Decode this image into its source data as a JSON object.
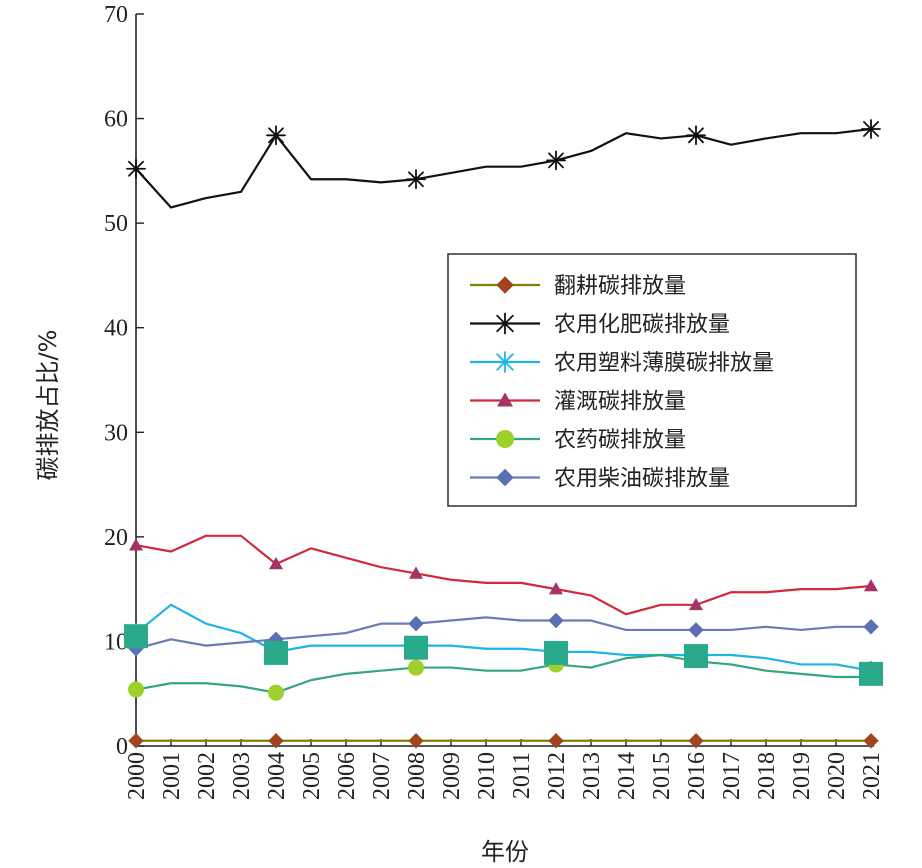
{
  "chart_data": {
    "type": "line",
    "title": "",
    "xlabel": "年份",
    "ylabel": "碳排放占比/%",
    "ylim": [
      0,
      70
    ],
    "yticks": [
      0,
      10,
      20,
      30,
      40,
      50,
      60,
      70
    ],
    "x": [
      "2000",
      "2001",
      "2002",
      "2003",
      "2004",
      "2005",
      "2006",
      "2007",
      "2008",
      "2009",
      "2010",
      "2011",
      "2012",
      "2013",
      "2014",
      "2015",
      "2016",
      "2017",
      "2018",
      "2019",
      "2020",
      "2021"
    ],
    "grid": false,
    "legend_position": "center-right",
    "series": [
      {
        "name": "翻耕碳排放量",
        "color": "#808000",
        "marker": "diamond",
        "marker_color": "#a0451e",
        "marker_at": [
          "2000",
          "2004",
          "2008",
          "2012",
          "2016",
          "2021"
        ],
        "values": [
          0.5,
          0.5,
          0.5,
          0.5,
          0.5,
          0.5,
          0.5,
          0.5,
          0.5,
          0.5,
          0.5,
          0.5,
          0.5,
          0.5,
          0.5,
          0.5,
          0.5,
          0.5,
          0.5,
          0.5,
          0.5,
          0.5
        ]
      },
      {
        "name": "农用化肥碳排放量",
        "color": "#111111",
        "marker": "asterisk",
        "marker_color": "#111111",
        "marker_at": [
          "2000",
          "2004",
          "2008",
          "2012",
          "2016",
          "2021"
        ],
        "values": [
          55.2,
          51.5,
          52.4,
          53.0,
          58.4,
          54.2,
          54.2,
          53.9,
          54.2,
          54.8,
          55.4,
          55.4,
          56.0,
          56.9,
          58.6,
          58.1,
          58.4,
          57.5,
          58.1,
          58.6,
          58.6,
          59.0
        ]
      },
      {
        "name": "农用塑料薄膜碳排放量",
        "color": "#1fb4e6",
        "marker": "asterisk",
        "marker_color": "#1fb4e6",
        "marker_at": [
          "2000",
          "2004",
          "2008",
          "2012",
          "2016",
          "2021"
        ],
        "values": [
          10.8,
          13.5,
          11.7,
          10.8,
          9.0,
          9.6,
          9.6,
          9.6,
          9.6,
          9.6,
          9.3,
          9.3,
          9.0,
          9.0,
          8.7,
          8.7,
          8.7,
          8.7,
          8.4,
          7.8,
          7.8,
          7.2
        ]
      },
      {
        "name": "灌溉碳排放量",
        "color": "#d12a3a",
        "marker": "triangle",
        "marker_color": "#a23566",
        "marker_at": [
          "2000",
          "2004",
          "2008",
          "2012",
          "2016",
          "2021"
        ],
        "values": [
          19.2,
          18.6,
          20.1,
          20.1,
          17.4,
          18.9,
          18.0,
          17.1,
          16.5,
          15.9,
          15.6,
          15.6,
          15.0,
          14.4,
          12.6,
          13.5,
          13.5,
          14.7,
          14.7,
          15.0,
          15.0,
          15.3
        ]
      },
      {
        "name": "农药碳排放量",
        "color": "#33a67a",
        "marker": "circle",
        "marker_color": "#9bd12a",
        "marker_at": [
          "2000",
          "2004",
          "2008",
          "2012"
        ],
        "values": [
          5.4,
          6.0,
          6.0,
          5.7,
          5.1,
          6.3,
          6.9,
          7.2,
          7.5,
          7.5,
          7.2,
          7.2,
          7.8,
          7.5,
          8.4,
          8.7,
          8.1,
          7.8,
          7.2,
          6.9,
          6.6,
          6.6
        ]
      },
      {
        "name": "农用柴油碳排放量",
        "color": "#6a7bb5",
        "marker": "diamond",
        "marker_color": "#5b6fb3",
        "marker_at": [
          "2000",
          "2004",
          "2008",
          "2012",
          "2016",
          "2021"
        ],
        "values": [
          9.3,
          10.2,
          9.6,
          9.9,
          10.2,
          10.5,
          10.8,
          11.7,
          11.7,
          12.0,
          12.3,
          12.0,
          12.0,
          12.0,
          11.1,
          11.1,
          11.1,
          11.1,
          11.4,
          11.1,
          11.4,
          11.4
        ]
      }
    ],
    "extra_markers": {
      "marker": "square",
      "color": "#2aaa8a",
      "points": [
        {
          "x": "2000",
          "y": 10.5
        },
        {
          "x": "2004",
          "y": 8.9
        },
        {
          "x": "2008",
          "y": 9.4
        },
        {
          "x": "2012",
          "y": 8.9
        },
        {
          "x": "2016",
          "y": 8.6
        },
        {
          "x": "2021",
          "y": 6.9
        }
      ]
    }
  }
}
